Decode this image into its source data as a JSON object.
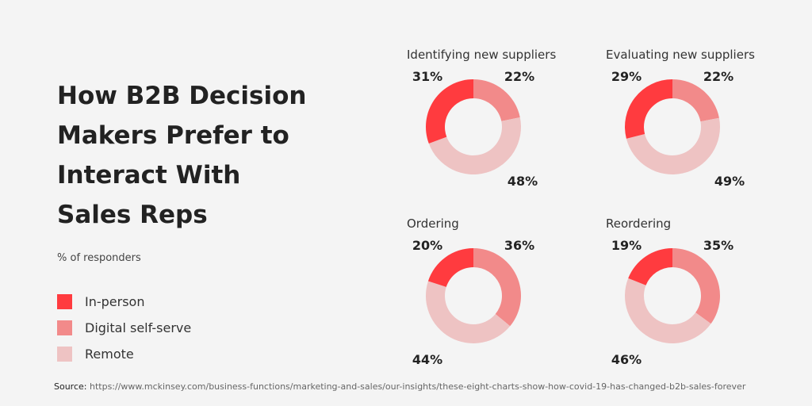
{
  "title": "How B2B Decision Makers Prefer to Interact With Sales Reps",
  "subtitle": "% of responders",
  "legend": [
    {
      "label": "In-person",
      "color": "#ff3b3f"
    },
    {
      "label": "Digital self-serve",
      "color": "#f28a8a"
    },
    {
      "label": "Remote",
      "color": "#eec3c3"
    }
  ],
  "chart_data": [
    {
      "type": "pie",
      "title": "Identifying new suppliers",
      "series": [
        {
          "name": "In-person",
          "value": 31,
          "label": "31%"
        },
        {
          "name": "Digital self-serve",
          "value": 22,
          "label": "22%"
        },
        {
          "name": "Remote",
          "value": 48,
          "label": "48%"
        }
      ]
    },
    {
      "type": "pie",
      "title": "Evaluating new suppliers",
      "series": [
        {
          "name": "In-person",
          "value": 29,
          "label": "29%"
        },
        {
          "name": "Digital self-serve",
          "value": 22,
          "label": "22%"
        },
        {
          "name": "Remote",
          "value": 49,
          "label": "49%"
        }
      ]
    },
    {
      "type": "pie",
      "title": "Ordering",
      "series": [
        {
          "name": "In-person",
          "value": 20,
          "label": "20%"
        },
        {
          "name": "Digital self-serve",
          "value": 36,
          "label": "36%"
        },
        {
          "name": "Remote",
          "value": 44,
          "label": "44%"
        }
      ]
    },
    {
      "type": "pie",
      "title": "Reordering",
      "series": [
        {
          "name": "In-person",
          "value": 19,
          "label": "19%"
        },
        {
          "name": "Digital self-serve",
          "value": 35,
          "label": "35%"
        },
        {
          "name": "Remote",
          "value": 46,
          "label": "46%"
        }
      ]
    }
  ],
  "source": {
    "label": "Source:",
    "url": "https://www.mckinsey.com/business-functions/marketing-and-sales/our-insights/these-eight-charts-show-how-covid-19-has-changed-b2b-sales-forever"
  }
}
